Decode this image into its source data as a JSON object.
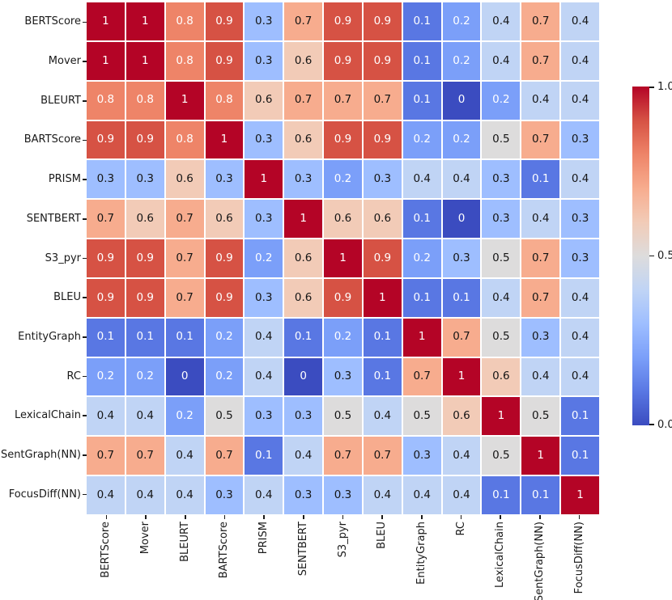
{
  "figure": {
    "background": "#ffffff",
    "grid_line_color": "#ffffff"
  },
  "chart_data": {
    "type": "heatmap",
    "title": "",
    "xlabel": "",
    "ylabel": "",
    "metrics": [
      "BERTScore",
      "Mover",
      "BLEURT",
      "BARTScore",
      "PRISM",
      "SENTBERT",
      "S3_pyr",
      "BLEU",
      "EntityGraph",
      "RC",
      "LexicalChain",
      "SentGraph(NN)",
      "FocusDiff(NN)"
    ],
    "matrix": [
      [
        1,
        1,
        0.8,
        0.9,
        0.3,
        0.7,
        0.9,
        0.9,
        0.1,
        0.2,
        0.4,
        0.7,
        0.4
      ],
      [
        1,
        1,
        0.8,
        0.9,
        0.3,
        0.6,
        0.9,
        0.9,
        0.1,
        0.2,
        0.4,
        0.7,
        0.4
      ],
      [
        0.8,
        0.8,
        1,
        0.8,
        0.6,
        0.7,
        0.7,
        0.7,
        0.1,
        0,
        0.2,
        0.4,
        0.4
      ],
      [
        0.9,
        0.9,
        0.8,
        1,
        0.3,
        0.6,
        0.9,
        0.9,
        0.2,
        0.2,
        0.5,
        0.7,
        0.3
      ],
      [
        0.3,
        0.3,
        0.6,
        0.3,
        1,
        0.3,
        0.2,
        0.3,
        0.4,
        0.4,
        0.3,
        0.1,
        0.4
      ],
      [
        0.7,
        0.6,
        0.7,
        0.6,
        0.3,
        1,
        0.6,
        0.6,
        0.1,
        0,
        0.3,
        0.4,
        0.3
      ],
      [
        0.9,
        0.9,
        0.7,
        0.9,
        0.2,
        0.6,
        1,
        0.9,
        0.2,
        0.3,
        0.5,
        0.7,
        0.3
      ],
      [
        0.9,
        0.9,
        0.7,
        0.9,
        0.3,
        0.6,
        0.9,
        1,
        0.1,
        0.1,
        0.4,
        0.7,
        0.4
      ],
      [
        0.1,
        0.1,
        0.1,
        0.2,
        0.4,
        0.1,
        0.2,
        0.1,
        1,
        0.7,
        0.5,
        0.3,
        0.4
      ],
      [
        0.2,
        0.2,
        0,
        0.2,
        0.4,
        0,
        0.3,
        0.1,
        0.7,
        1,
        0.6,
        0.4,
        0.4
      ],
      [
        0.4,
        0.4,
        0.2,
        0.5,
        0.3,
        0.3,
        0.5,
        0.4,
        0.5,
        0.6,
        1,
        0.5,
        0.1
      ],
      [
        0.7,
        0.7,
        0.4,
        0.7,
        0.1,
        0.4,
        0.7,
        0.7,
        0.3,
        0.4,
        0.5,
        1,
        0.1
      ],
      [
        0.4,
        0.4,
        0.4,
        0.3,
        0.4,
        0.3,
        0.3,
        0.4,
        0.4,
        0.4,
        0.1,
        0.1,
        1
      ]
    ],
    "vmin": 0,
    "vmax": 1,
    "colormap": "coolwarm",
    "palette": {
      "0": "#3b4cc0",
      "0.1": "#5977e3",
      "0.2": "#7b9ff9",
      "0.3": "#9ebeff",
      "0.4": "#c0d4f5",
      "0.5": "#dddcdc",
      "0.6": "#f2cbb7",
      "0.7": "#f7ac8e",
      "0.8": "#ee8468",
      "0.9": "#d65244",
      "1": "#b40426"
    },
    "annotation_colors": {
      "light": "#ffffff",
      "dark": "#151515"
    },
    "colorbar": {
      "position": "right",
      "ticks": [
        {
          "value": 1.0,
          "label": "1.0"
        },
        {
          "value": 0.5,
          "label": "0.5"
        },
        {
          "value": 0.0,
          "label": "0.0"
        }
      ]
    },
    "legend_position": "none",
    "grid": false
  }
}
